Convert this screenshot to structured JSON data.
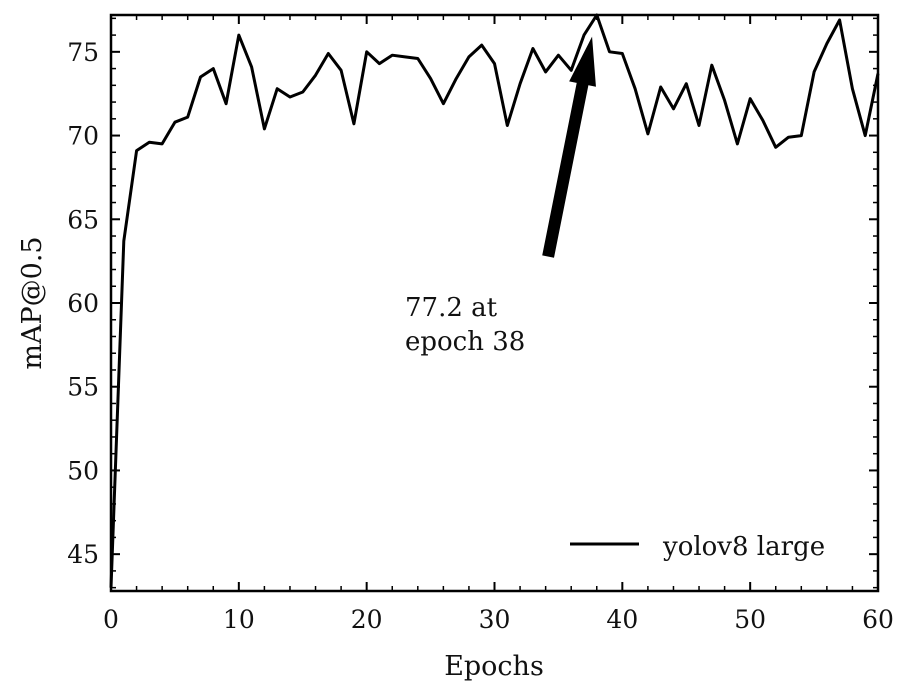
{
  "chart_data": {
    "type": "line",
    "xlabel": "Epochs",
    "ylabel": "mAP@0.5",
    "xlim": [
      0,
      60
    ],
    "ylim": [
      42.8,
      77.2
    ],
    "x_ticks": [
      0,
      10,
      20,
      30,
      40,
      50,
      60
    ],
    "y_ticks": [
      45,
      50,
      55,
      60,
      65,
      70,
      75
    ],
    "grid": false,
    "legend": {
      "position": "lower-right",
      "entries": [
        "yolov8 large"
      ]
    },
    "series": [
      {
        "name": "yolov8 large",
        "color": "#000000",
        "x": [
          0,
          1,
          2,
          3,
          4,
          5,
          6,
          7,
          8,
          9,
          10,
          11,
          12,
          13,
          14,
          15,
          16,
          17,
          18,
          19,
          20,
          21,
          22,
          23,
          24,
          25,
          26,
          27,
          28,
          29,
          30,
          31,
          32,
          33,
          34,
          35,
          36,
          37,
          38,
          39,
          40,
          41,
          42,
          43,
          44,
          45,
          46,
          47,
          48,
          49,
          50,
          51,
          52,
          53,
          54,
          55,
          56,
          57,
          58,
          59,
          60
        ],
        "y": [
          43.0,
          63.7,
          69.1,
          69.6,
          69.5,
          70.8,
          71.1,
          73.5,
          74.0,
          71.9,
          76.0,
          74.1,
          70.4,
          72.8,
          72.3,
          72.6,
          73.6,
          74.9,
          73.9,
          70.7,
          75.0,
          74.3,
          74.8,
          74.7,
          74.6,
          73.4,
          71.9,
          73.4,
          74.7,
          75.4,
          74.3,
          70.6,
          73.1,
          75.2,
          73.8,
          74.8,
          73.9,
          76.0,
          77.2,
          75.0,
          74.9,
          72.8,
          70.1,
          72.9,
          71.6,
          73.1,
          70.6,
          74.2,
          72.1,
          69.5,
          72.2,
          70.9,
          69.3,
          69.9,
          70.0,
          73.8,
          75.5,
          76.9,
          72.8,
          70.0,
          73.7
        ]
      }
    ],
    "annotation": {
      "text_line1": "77.2 at",
      "text_line2": "epoch 38",
      "text_at": [
        23,
        59.5
      ],
      "arrow_from": [
        34.2,
        62.8
      ],
      "arrow_to": [
        37.6,
        75.8
      ]
    }
  }
}
